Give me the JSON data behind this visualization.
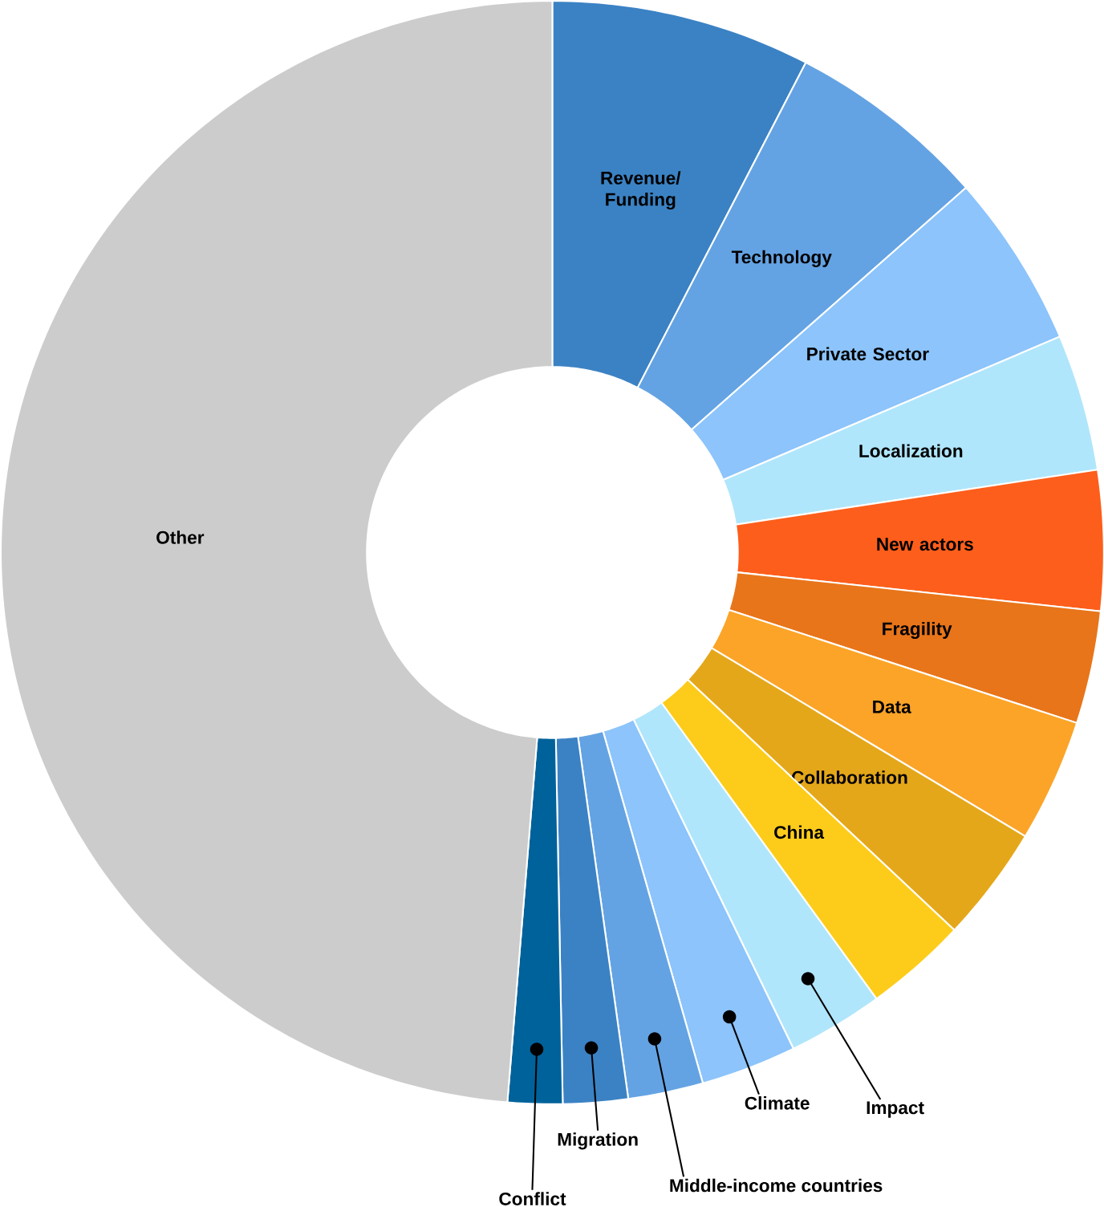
{
  "chart_data": {
    "type": "donut",
    "categories": [
      "Revenue/ Funding",
      "Technology",
      "Private Sector",
      "Localization",
      "New actors",
      "Fragility",
      "Data",
      "Collaboration",
      "China",
      "Impact",
      "Climate",
      "Middle-income countries",
      "Migration",
      "Conflict",
      "Other"
    ],
    "values": [
      7.6,
      5.9,
      5.1,
      4.0,
      4.1,
      3.3,
      3.6,
      3.4,
      3.0,
      2.8,
      2.8,
      2.2,
      1.9,
      1.6,
      48.7
    ],
    "colors": [
      "#3b82c4",
      "#64a3e3",
      "#8cc4fb",
      "#b0e6fb",
      "#fd5e1b",
      "#e8751a",
      "#fba428",
      "#e5a71a",
      "#fdcc1a",
      "#b0e6fb",
      "#8cc4fb",
      "#64a3e3",
      "#3b82c4",
      "#00629b",
      "#cccccc"
    ]
  }
}
